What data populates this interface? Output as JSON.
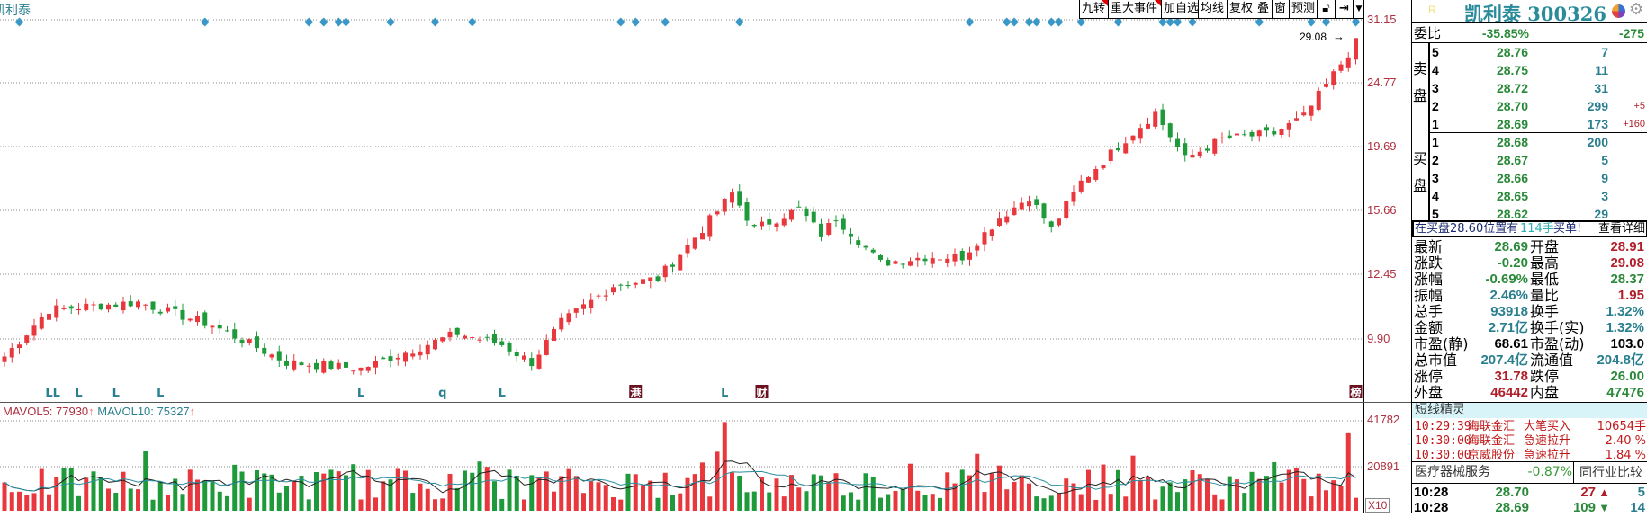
{
  "chart_title": "凯利泰",
  "toolbar": {
    "buttons": [
      "九转",
      "重大事件",
      "加自选",
      "均线",
      "复权",
      "叠",
      "窗",
      "预测"
    ],
    "lock_icon": "lock-icon",
    "end_icon": "jump-to-end-icon",
    "dropdown_icon": "chevron-down-icon"
  },
  "price_axis": [
    "31.15",
    "24.77",
    "19.69",
    "15.66",
    "12.45",
    "9.90"
  ],
  "high_label": "29.08",
  "volume_axis": [
    "41782",
    "20891"
  ],
  "volume_multiplier": "X10",
  "mavol": {
    "ma5_label": "MAVOL5: 77930",
    "ma10_label": "MAVOL10: 75327",
    "arrow": "↑"
  },
  "colors": {
    "up": "#e8383d",
    "down": "#1f9a3a",
    "ma5": "#222222",
    "ma10": "#2a8f9f",
    "marker": "#3a98c8",
    "axis_text": "#b03040",
    "teal": "#2a7f8f"
  },
  "chart_data": {
    "type": "candlestick",
    "y_axis": {
      "scale": "log",
      "ticks": [
        31.15,
        24.77,
        19.69,
        15.66,
        12.45,
        9.9
      ]
    },
    "close_keypoints": [
      [
        0,
        9.3
      ],
      [
        6,
        11.0
      ],
      [
        18,
        11.3
      ],
      [
        28,
        10.4
      ],
      [
        38,
        9.1
      ],
      [
        48,
        8.9
      ],
      [
        61,
        10.1
      ],
      [
        67,
        9.7
      ],
      [
        71,
        9.1
      ],
      [
        75,
        10.5
      ],
      [
        82,
        12.0
      ],
      [
        88,
        12.3
      ],
      [
        94,
        14.7
      ],
      [
        98,
        16.7
      ],
      [
        101,
        14.7
      ],
      [
        107,
        15.8
      ],
      [
        110,
        14.4
      ],
      [
        112,
        15.3
      ],
      [
        118,
        13.0
      ],
      [
        124,
        13.3
      ],
      [
        129,
        13.3
      ],
      [
        134,
        15.3
      ],
      [
        138,
        16.5
      ],
      [
        141,
        14.7
      ],
      [
        145,
        17.4
      ],
      [
        151,
        20.3
      ],
      [
        155,
        22.3
      ],
      [
        159,
        18.9
      ],
      [
        164,
        20.3
      ],
      [
        171,
        20.7
      ],
      [
        175,
        22.0
      ],
      [
        179,
        25.6
      ],
      [
        182,
        28.7
      ]
    ],
    "last_high": 29.08,
    "volume_axis_ticks": [
      41782,
      20891
    ],
    "event_marker_indices": [
      2,
      27,
      41,
      43,
      45,
      46,
      52,
      58,
      63,
      83,
      85,
      89,
      99,
      130,
      135,
      136,
      138,
      139,
      141,
      142,
      145,
      150,
      156,
      157,
      158,
      160,
      169,
      176,
      178,
      182
    ],
    "bottom_markers": [
      {
        "index": 6,
        "text": "L"
      },
      {
        "index": 7,
        "text": "L"
      },
      {
        "index": 10,
        "text": "L"
      },
      {
        "index": 15,
        "text": "L"
      },
      {
        "index": 21,
        "text": "L"
      },
      {
        "index": 48,
        "text": "L"
      },
      {
        "index": 59,
        "text": "q"
      },
      {
        "index": 67,
        "text": "L"
      },
      {
        "index": 85,
        "text": "港",
        "boxed": true
      },
      {
        "index": 97,
        "text": "L"
      },
      {
        "index": 102,
        "text": "财",
        "boxed": true
      },
      {
        "index": 182,
        "text": "榜",
        "boxed": true
      }
    ]
  },
  "panel": {
    "r_badge": "R",
    "title": "凯利泰 300326",
    "pie_icon": "pie-chart-icon",
    "gear_icon": "gear-icon",
    "weibi": {
      "label": "委比",
      "pct": "-35.85%",
      "diff": "-275"
    },
    "sell_label": [
      "卖",
      "盘"
    ],
    "buy_label": [
      "买",
      "盘"
    ],
    "sell": [
      {
        "level": "5",
        "price": "28.76",
        "vol": "7",
        "chg": ""
      },
      {
        "level": "4",
        "price": "28.75",
        "vol": "11",
        "chg": ""
      },
      {
        "level": "3",
        "price": "28.72",
        "vol": "31",
        "chg": ""
      },
      {
        "level": "2",
        "price": "28.70",
        "vol": "299",
        "chg": "+5"
      },
      {
        "level": "1",
        "price": "28.69",
        "vol": "173",
        "chg": "+160"
      }
    ],
    "buy": [
      {
        "level": "1",
        "price": "28.68",
        "vol": "200"
      },
      {
        "level": "2",
        "price": "28.67",
        "vol": "5"
      },
      {
        "level": "3",
        "price": "28.66",
        "vol": "9"
      },
      {
        "level": "4",
        "price": "28.65",
        "vol": "3"
      },
      {
        "level": "5",
        "price": "28.62",
        "vol": "29"
      }
    ],
    "notice": {
      "prefix": "在买盘28.60位置有",
      "qty": "114手",
      "suffix": "买单!",
      "link": "查看详细"
    },
    "stats": [
      {
        "l1": "最新",
        "v1": "28.69",
        "c1": "g",
        "l2": "开盘",
        "v2": "28.91",
        "c2": "r"
      },
      {
        "l1": "涨跌",
        "v1": "-0.20",
        "c1": "g",
        "l2": "最高",
        "v2": "29.08",
        "c2": "r"
      },
      {
        "l1": "涨幅",
        "v1": "-0.69%",
        "c1": "g",
        "l2": "最低",
        "v2": "28.37",
        "c2": "g"
      },
      {
        "l1": "振幅",
        "v1": "2.46%",
        "c1": "t",
        "l2": "量比",
        "v2": "1.95",
        "c2": "r"
      },
      {
        "l1": "总手",
        "v1": "93918",
        "c1": "t",
        "l2": "换手",
        "v2": "1.32%",
        "c2": "t"
      },
      {
        "l1": "金额",
        "v1": "2.71亿",
        "c1": "t",
        "l2": "换手(实)",
        "v2": "1.32%",
        "c2": "t"
      },
      {
        "l1": "市盈(静)",
        "v1": "68.61",
        "c1": "k",
        "l2": "市盈(动)",
        "v2": "103.0",
        "c2": "k"
      },
      {
        "l1": "总市值",
        "v1": "207.4亿",
        "c1": "t",
        "l2": "流通值",
        "v2": "204.8亿",
        "c2": "t"
      },
      {
        "l1": "涨停",
        "v1": "31.78",
        "c1": "r",
        "l2": "跌停",
        "v2": "26.00",
        "c2": "g"
      },
      {
        "l1": "外盘",
        "v1": "46442",
        "c1": "r",
        "l2": "内盘",
        "v2": "47476",
        "c2": "g"
      }
    ],
    "sprite": {
      "title": "短线精灵",
      "events": [
        {
          "time": "10:29:39",
          "stock": "海联金汇",
          "type": "大笔买入",
          "value": "10654手"
        },
        {
          "time": "10:30:00",
          "stock": "海联金汇",
          "type": "急速拉升",
          "value": "2.40 %"
        },
        {
          "time": "10:30:00",
          "stock": "京威股份",
          "type": "急速拉升",
          "value": "1.84 %"
        }
      ]
    },
    "industry": {
      "name": "医疗器械服务",
      "pct": "-0.87%",
      "compare": "同行业比较"
    },
    "ticks": [
      {
        "time": "10:28",
        "price": "28.70",
        "vol": "27",
        "dir": "up",
        "count": "5"
      },
      {
        "time": "10:28",
        "price": "28.69",
        "vol": "109",
        "dir": "down",
        "count": "14"
      }
    ]
  }
}
